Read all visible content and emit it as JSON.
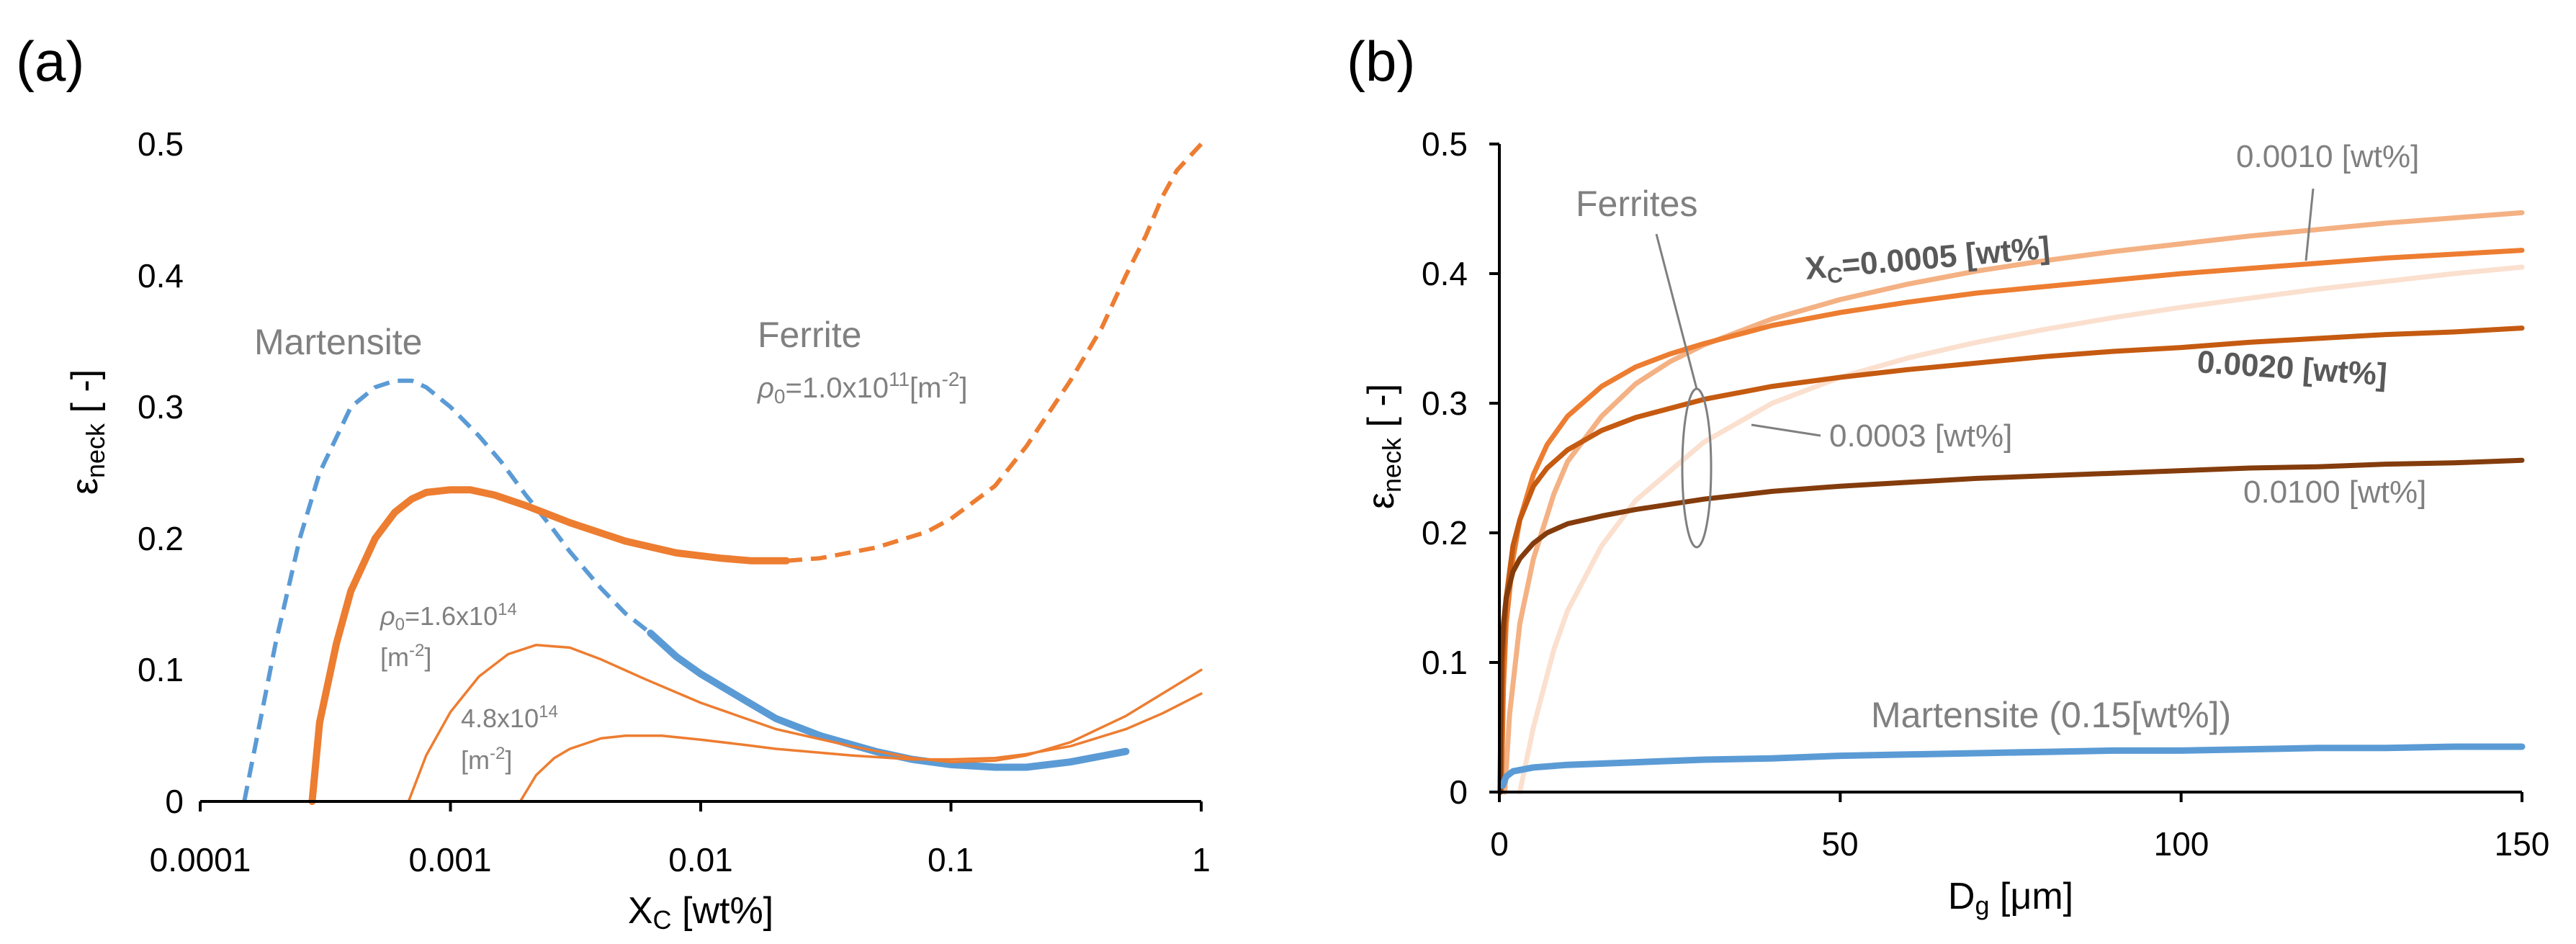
{
  "chart_data": [
    {
      "id": "a",
      "panel_label": "(a)",
      "type": "line",
      "xscale": "log",
      "xlim": [
        0.0001,
        1
      ],
      "ylim": [
        0,
        0.5
      ],
      "xticks": [
        "0.0001",
        "0.001",
        "0.01",
        "0.1",
        "1"
      ],
      "yticks": [
        "0",
        "0.1",
        "0.2",
        "0.3",
        "0.4",
        "0.5"
      ],
      "xlabel": {
        "main": "X",
        "sub": "C",
        "rest": " [wt%]"
      },
      "ylabel": {
        "main": "ε",
        "sub": "neck",
        "rest": " [ -]"
      },
      "colors": {
        "martensite": "#5b9bd5",
        "ferrite": "#ed7d31",
        "text": "#808080"
      },
      "series": [
        {
          "name": "Martensite (dashed)",
          "color": "#5b9bd5",
          "dash": true,
          "width": 6,
          "x": [
            0.00015,
            0.0002,
            0.00025,
            0.0003,
            0.0004,
            0.0005,
            0.0006,
            0.0007,
            0.0008,
            0.001,
            0.0013,
            0.0016,
            0.002,
            0.0025,
            0.003,
            0.004,
            0.005,
            0.0063
          ],
          "y": [
            0,
            0.12,
            0.2,
            0.25,
            0.3,
            0.315,
            0.32,
            0.32,
            0.315,
            0.3,
            0.278,
            0.258,
            0.233,
            0.21,
            0.19,
            0.162,
            0.143,
            0.128
          ]
        },
        {
          "name": "Martensite (solid)",
          "color": "#5b9bd5",
          "dash": false,
          "width": 10,
          "x": [
            0.0063,
            0.008,
            0.01,
            0.015,
            0.02,
            0.03,
            0.05,
            0.07,
            0.1,
            0.15,
            0.2,
            0.3,
            0.5
          ],
          "y": [
            0.128,
            0.11,
            0.097,
            0.077,
            0.063,
            0.05,
            0.038,
            0.032,
            0.028,
            0.026,
            0.026,
            0.03,
            0.038
          ]
        },
        {
          "name": "Ferrite ρ0=1.0x10^11 (solid)",
          "color": "#ed7d31",
          "dash": false,
          "width": 10,
          "x": [
            0.00028,
            0.0003,
            0.00035,
            0.0004,
            0.0005,
            0.0006,
            0.0007,
            0.0008,
            0.001,
            0.0012,
            0.0015,
            0.002,
            0.003,
            0.005,
            0.008,
            0.012,
            0.016,
            0.022
          ],
          "y": [
            0,
            0.06,
            0.12,
            0.16,
            0.2,
            0.22,
            0.23,
            0.235,
            0.237,
            0.237,
            0.233,
            0.225,
            0.212,
            0.198,
            0.189,
            0.185,
            0.183,
            0.183
          ]
        },
        {
          "name": "Ferrite ρ0=1.0x10^11 (dashed)",
          "color": "#ed7d31",
          "dash": true,
          "width": 6,
          "x": [
            0.022,
            0.03,
            0.05,
            0.08,
            0.1,
            0.15,
            0.2,
            0.3,
            0.4,
            0.5,
            0.6,
            0.7,
            0.8,
            1.0
          ],
          "y": [
            0.183,
            0.185,
            0.193,
            0.205,
            0.215,
            0.24,
            0.27,
            0.32,
            0.36,
            0.4,
            0.43,
            0.46,
            0.48,
            0.5
          ]
        },
        {
          "name": "Ferrite ρ0=1.6x10^14",
          "color": "#ed7d31",
          "dash": false,
          "width": 3.5,
          "x": [
            0.00068,
            0.0008,
            0.001,
            0.0013,
            0.0017,
            0.0022,
            0.003,
            0.004,
            0.006,
            0.01,
            0.02,
            0.04,
            0.07,
            0.1,
            0.15,
            0.2,
            0.3,
            0.5,
            0.7,
            1.0
          ],
          "y": [
            0,
            0.035,
            0.068,
            0.095,
            0.112,
            0.119,
            0.117,
            0.108,
            0.093,
            0.075,
            0.055,
            0.042,
            0.033,
            0.03,
            0.031,
            0.035,
            0.045,
            0.065,
            0.082,
            0.1
          ]
        },
        {
          "name": "Ferrite ρ0=4.8x10^14",
          "color": "#ed7d31",
          "dash": false,
          "width": 3.5,
          "x": [
            0.0019,
            0.0022,
            0.0026,
            0.003,
            0.004,
            0.005,
            0.007,
            0.01,
            0.015,
            0.02,
            0.04,
            0.07,
            0.1,
            0.15,
            0.2,
            0.3,
            0.5,
            0.7,
            1.0
          ],
          "y": [
            0,
            0.02,
            0.033,
            0.04,
            0.048,
            0.05,
            0.05,
            0.047,
            0.043,
            0.04,
            0.035,
            0.032,
            0.032,
            0.033,
            0.036,
            0.042,
            0.055,
            0.067,
            0.082
          ]
        }
      ],
      "annotations": {
        "martensite": "Martensite",
        "ferrite": "Ferrite",
        "rho_11": {
          "sym": "ρ",
          "sub": "0",
          "mid": "=1.0x10",
          "sup": "11",
          "end": "[m",
          "sup2": "-2",
          "close": "]"
        },
        "rho_16": {
          "sym": "ρ",
          "sub": "0",
          "mid": "=1.6x10",
          "sup": "14"
        },
        "unit_16": {
          "pre": "[m",
          "sup": "-2",
          "post": "]"
        },
        "rho_48": {
          "mid": "4.8x10",
          "sup": "14"
        },
        "unit_48": {
          "pre": "[m",
          "sup": "-2",
          "post": "]"
        }
      }
    },
    {
      "id": "b",
      "panel_label": "(b)",
      "type": "line",
      "xscale": "linear",
      "xlim": [
        0,
        150
      ],
      "ylim": [
        0,
        0.5
      ],
      "xticks": [
        "0",
        "50",
        "100",
        "150"
      ],
      "yticks": [
        "0",
        "0.1",
        "0.2",
        "0.3",
        "0.4",
        "0.5"
      ],
      "xlabel": {
        "main": "D",
        "sub": "g",
        "rest": " [μm]"
      },
      "ylabel": {
        "main": "ε",
        "sub": "neck",
        "rest": " [ -]"
      },
      "colors": {
        "c0003": "#fbe0cf",
        "c0005": "#ed7d31",
        "c0010": "#f4b183",
        "c0020": "#c55a11",
        "c0100": "#843c0c",
        "martensite": "#5b9bd5",
        "bracket": "#7f7f7f"
      },
      "series": [
        {
          "name": "0.0003 [wt%]",
          "color": "#fbe0cf",
          "width": 7,
          "x": [
            3,
            5,
            8,
            10,
            15,
            20,
            30,
            40,
            50,
            60,
            70,
            80,
            90,
            100,
            110,
            120,
            130,
            140,
            150
          ],
          "y": [
            0,
            0.05,
            0.11,
            0.14,
            0.19,
            0.225,
            0.27,
            0.3,
            0.32,
            0.335,
            0.347,
            0.357,
            0.366,
            0.374,
            0.381,
            0.388,
            0.394,
            0.4,
            0.405
          ]
        },
        {
          "name": "0.0010 [wt%]",
          "color": "#f4b183",
          "width": 7,
          "x": [
            0.8,
            1.5,
            3,
            5,
            8,
            10,
            15,
            20,
            25,
            30,
            40,
            50,
            60,
            70,
            80,
            90,
            100,
            110,
            120,
            130,
            140,
            150
          ],
          "y": [
            0,
            0.06,
            0.13,
            0.18,
            0.23,
            0.255,
            0.29,
            0.315,
            0.332,
            0.345,
            0.365,
            0.38,
            0.392,
            0.402,
            0.41,
            0.417,
            0.423,
            0.429,
            0.434,
            0.439,
            0.443,
            0.447
          ]
        },
        {
          "name": "X_C=0.0005 [wt%]",
          "color": "#ed7d31",
          "width": 7,
          "x": [
            0.3,
            0.6,
            1,
            2,
            3,
            5,
            7,
            10,
            15,
            20,
            25,
            30,
            40,
            50,
            60,
            70,
            80,
            90,
            100,
            110,
            120,
            130,
            140,
            150
          ],
          "y": [
            0,
            0.08,
            0.13,
            0.18,
            0.21,
            0.245,
            0.268,
            0.29,
            0.313,
            0.328,
            0.338,
            0.346,
            0.36,
            0.37,
            0.378,
            0.385,
            0.39,
            0.395,
            0.4,
            0.404,
            0.408,
            0.412,
            0.415,
            0.418
          ]
        },
        {
          "name": "0.0020 [wt%]",
          "color": "#c55a11",
          "width": 7,
          "x": [
            0.2,
            0.5,
            1,
            2,
            3,
            5,
            7,
            10,
            15,
            20,
            30,
            40,
            50,
            60,
            70,
            80,
            90,
            100,
            110,
            120,
            130,
            140,
            150
          ],
          "y": [
            0,
            0.1,
            0.15,
            0.19,
            0.21,
            0.236,
            0.25,
            0.264,
            0.279,
            0.289,
            0.303,
            0.313,
            0.32,
            0.326,
            0.331,
            0.336,
            0.34,
            0.343,
            0.347,
            0.35,
            0.353,
            0.355,
            0.358
          ]
        },
        {
          "name": "0.0100 [wt%]",
          "color": "#843c0c",
          "width": 7,
          "x": [
            0.1,
            0.3,
            0.6,
            1,
            2,
            3,
            5,
            7,
            10,
            15,
            20,
            30,
            40,
            50,
            60,
            70,
            80,
            90,
            100,
            110,
            120,
            130,
            140,
            150
          ],
          "y": [
            0,
            0.1,
            0.13,
            0.15,
            0.17,
            0.18,
            0.192,
            0.2,
            0.207,
            0.213,
            0.218,
            0.226,
            0.232,
            0.236,
            0.239,
            0.242,
            0.244,
            0.246,
            0.248,
            0.25,
            0.251,
            0.253,
            0.254,
            0.256
          ]
        },
        {
          "name": "Martensite (0.15[wt%])",
          "color": "#5b9bd5",
          "width": 9,
          "x": [
            0.5,
            1,
            2,
            5,
            10,
            20,
            30,
            40,
            50,
            60,
            70,
            80,
            90,
            100,
            110,
            120,
            130,
            140,
            150
          ],
          "y": [
            0.005,
            0.012,
            0.016,
            0.019,
            0.021,
            0.023,
            0.025,
            0.026,
            0.028,
            0.029,
            0.03,
            0.031,
            0.032,
            0.032,
            0.033,
            0.034,
            0.034,
            0.035,
            0.035
          ]
        }
      ],
      "annotations": {
        "ferrites": "Ferrites",
        "xc_main": "X",
        "xc_sub": "C",
        "xc_rest": "=0.0005 [wt%]",
        "c0010": "0.0010 [wt%]",
        "c0020": "0.0020 [wt%]",
        "c0003": "0.0003 [wt%]",
        "c0100": "0.0100 [wt%]",
        "martensite": "Martensite (0.15[wt%])"
      }
    }
  ]
}
